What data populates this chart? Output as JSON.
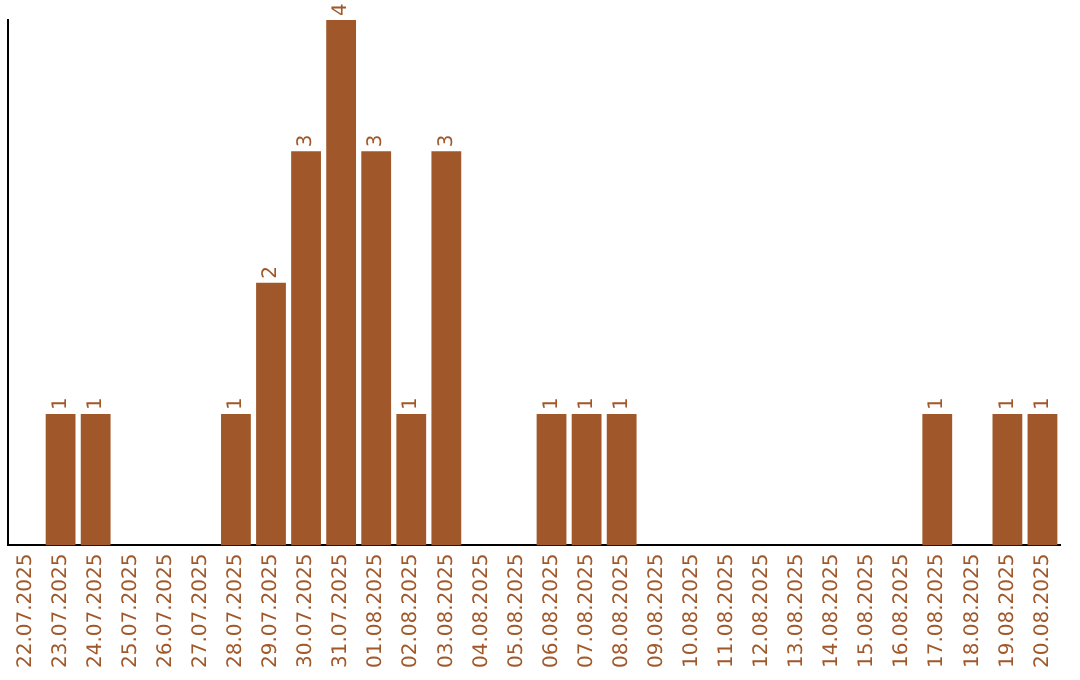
{
  "chart_data": {
    "type": "bar",
    "categories": [
      "22.07.2025",
      "23.07.2025",
      "24.07.2025",
      "25.07.2025",
      "26.07.2025",
      "27.07.2025",
      "28.07.2025",
      "29.07.2025",
      "30.07.2025",
      "31.07.2025",
      "01.08.2025",
      "02.08.2025",
      "03.08.2025",
      "04.08.2025",
      "05.08.2025",
      "06.08.2025",
      "07.08.2025",
      "08.08.2025",
      "09.08.2025",
      "10.08.2025",
      "11.08.2025",
      "12.08.2025",
      "13.08.2025",
      "14.08.2025",
      "15.08.2025",
      "16.08.2025",
      "17.08.2025",
      "18.08.2025",
      "19.08.2025",
      "20.08.2025"
    ],
    "values": [
      0,
      1,
      1,
      0,
      0,
      0,
      1,
      2,
      3,
      4,
      3,
      1,
      3,
      0,
      0,
      1,
      1,
      1,
      0,
      0,
      0,
      0,
      0,
      0,
      0,
      0,
      1,
      0,
      1,
      1
    ],
    "value_labels": [
      null,
      "1",
      "1",
      null,
      null,
      null,
      "1",
      "2",
      "3",
      "4",
      "3",
      "1",
      "3",
      null,
      null,
      "1",
      "1",
      "1",
      null,
      null,
      null,
      null,
      null,
      null,
      null,
      null,
      "1",
      null,
      "1",
      "1"
    ],
    "color": "#a0582a",
    "relative": false,
    "grid": false,
    "legend": false,
    "tick_labels": "x"
  }
}
